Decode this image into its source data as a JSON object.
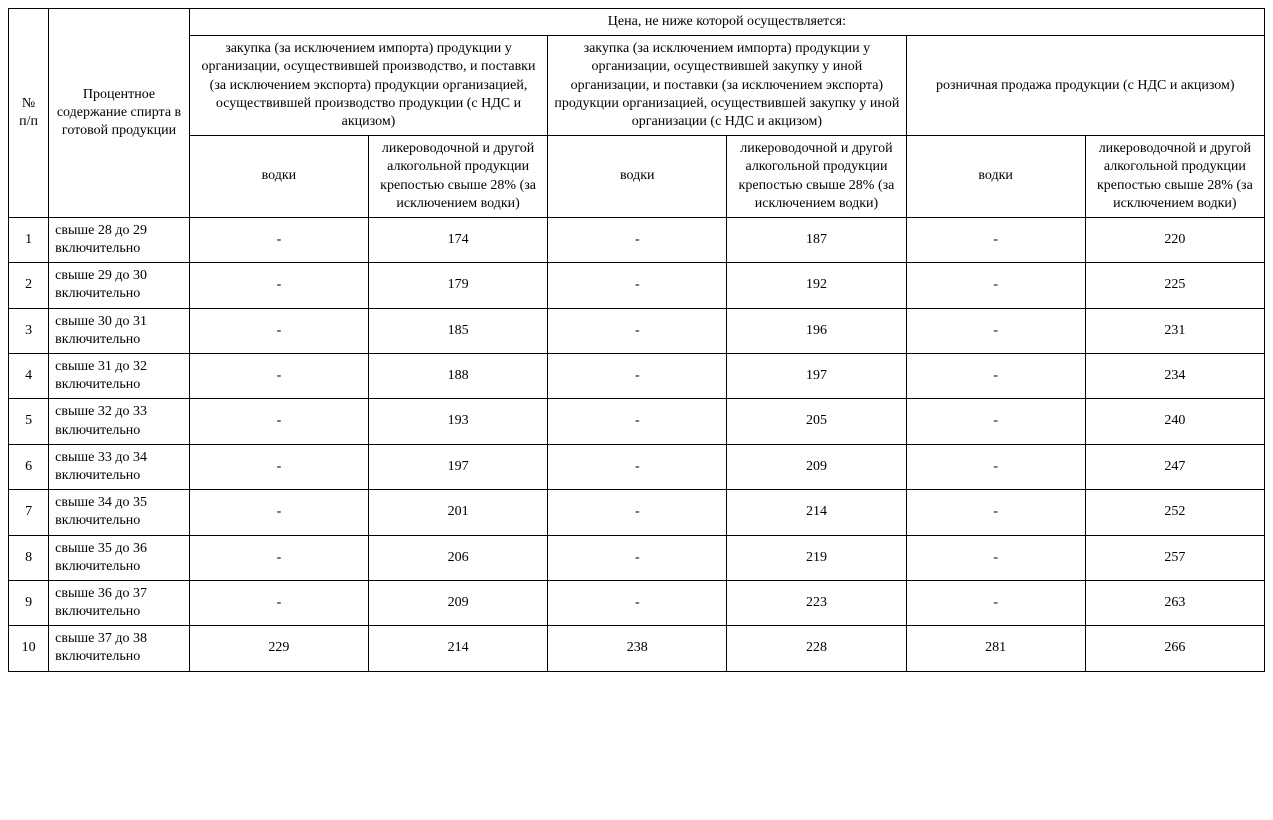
{
  "header": {
    "num": "№ п/п",
    "range": "Процентное содержание спирта в готовой продукции",
    "price_group": "Цена, не ниже которой осуществляется:",
    "groups": [
      {
        "title": "закупка (за исключением импорта) продукции у организации, осуществившей производство, и поставки (за исключением экспорта) продукции организацией, осуществившей производство продукции\n(с НДС и акцизом)",
        "sub": [
          "водки",
          "ликероводочной и другой алкогольной продукции крепостью свыше 28%\n(за исключением водки)"
        ]
      },
      {
        "title": "закупка (за исключением импорта) продукции у организации, осуществившей закупку у иной организации, и поставки (за исключением экспорта) продукции организацией, осуществившей закупку у иной организации\n(с НДС и акцизом)",
        "sub": [
          "водки",
          "ликероводочной и другой алкогольной продукции крепостью свыше 28%\n(за исключением водки)"
        ]
      },
      {
        "title": "розничная продажа продукции\n(с НДС и акцизом)",
        "sub": [
          "водки",
          "ликероводочной и другой алкогольной продукции крепостью свыше 28%\n(за исключением водки)"
        ]
      }
    ]
  },
  "rows": [
    {
      "n": "1",
      "range": "свыше 28 до 29 включительно",
      "v": [
        "-",
        "174",
        "-",
        "187",
        "-",
        "220"
      ]
    },
    {
      "n": "2",
      "range": "свыше 29 до 30 включительно",
      "v": [
        "-",
        "179",
        "-",
        "192",
        "-",
        "225"
      ]
    },
    {
      "n": "3",
      "range": "свыше 30 до 31 включительно",
      "v": [
        "-",
        "185",
        "-",
        "196",
        "-",
        "231"
      ]
    },
    {
      "n": "4",
      "range": "свыше 31 до 32 включительно",
      "v": [
        "-",
        "188",
        "-",
        "197",
        "-",
        "234"
      ]
    },
    {
      "n": "5",
      "range": "свыше 32 до 33 включительно",
      "v": [
        "-",
        "193",
        "-",
        "205",
        "-",
        "240"
      ]
    },
    {
      "n": "6",
      "range": "свыше 33 до 34 включительно",
      "v": [
        "-",
        "197",
        "-",
        "209",
        "-",
        "247"
      ]
    },
    {
      "n": "7",
      "range": "свыше 34 до 35 включительно",
      "v": [
        "-",
        "201",
        "-",
        "214",
        "-",
        "252"
      ]
    },
    {
      "n": "8",
      "range": "свыше 35 до 36 включительно",
      "v": [
        "-",
        "206",
        "-",
        "219",
        "-",
        "257"
      ]
    },
    {
      "n": "9",
      "range": "свыше 36 до 37 включительно",
      "v": [
        "-",
        "209",
        "-",
        "223",
        "-",
        "263"
      ]
    },
    {
      "n": "10",
      "range": "свыше 37 до 38 включительно",
      "v": [
        "229",
        "214",
        "238",
        "228",
        "281",
        "266"
      ]
    }
  ],
  "style": {
    "font_family": "Times New Roman",
    "font_size_pt": 11,
    "border_color": "#000000",
    "background_color": "#ffffff",
    "text_color": "#000000"
  }
}
